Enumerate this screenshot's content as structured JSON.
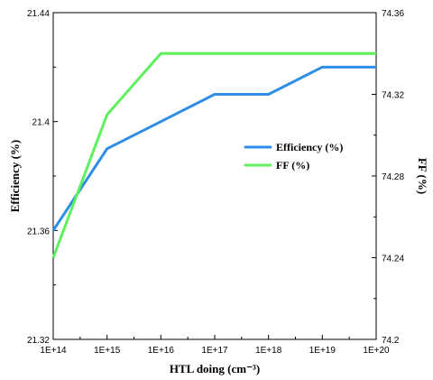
{
  "chart_data": {
    "type": "line",
    "categories": [
      "1E+14",
      "1E+15",
      "1E+16",
      "1E+17",
      "1E+18",
      "1E+19",
      "1E+20"
    ],
    "xlabel": "HTL doing (cm⁻³)",
    "ylabel": "Efficiency (%)",
    "y2label": "FF (%)",
    "ylim": [
      21.32,
      21.44
    ],
    "y2lim": [
      74.2,
      74.36
    ],
    "yticks": [
      "21.32",
      "21.36",
      "21.4",
      "21.44"
    ],
    "y2ticks": [
      "74.2",
      "74.24",
      "74.28",
      "74.32",
      "74.36"
    ],
    "grid": false,
    "legend_position": "center-right",
    "series": [
      {
        "name": "Efficiency (%)",
        "axis": "left",
        "color": "#2e8de6",
        "values": [
          21.36,
          21.39,
          21.4,
          21.41,
          21.41,
          21.42,
          21.42
        ]
      },
      {
        "name": "FF (%)",
        "axis": "right",
        "color": "#5cf25c",
        "values": [
          74.24,
          74.31,
          74.34,
          74.34,
          74.34,
          74.34,
          74.34
        ]
      }
    ]
  }
}
